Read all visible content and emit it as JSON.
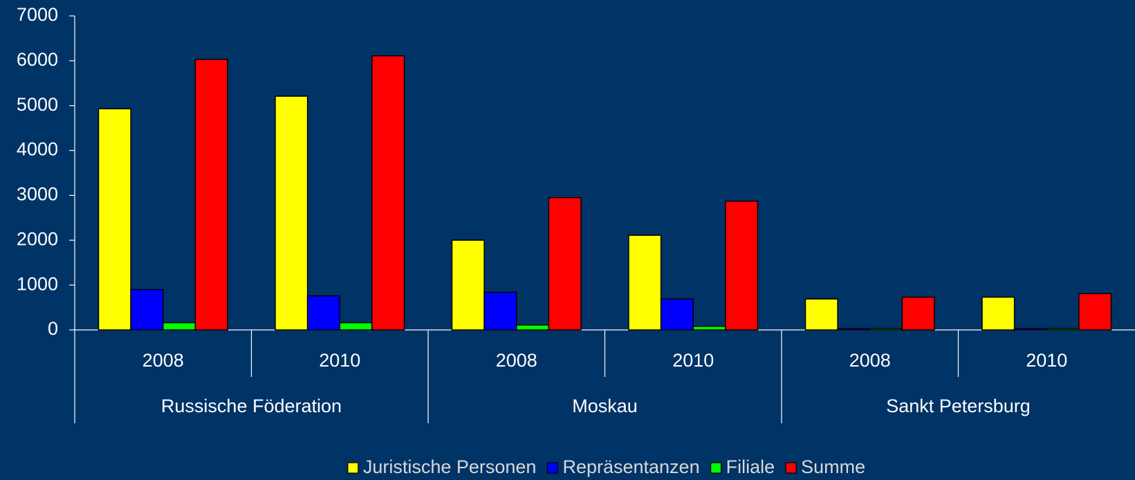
{
  "chart_data": {
    "type": "bar",
    "categories": [
      "2008",
      "2010",
      "2008",
      "2010",
      "2008",
      "2010"
    ],
    "groups": [
      "Russische Föderation",
      "Moskau",
      "Sankt Petersburg"
    ],
    "series": [
      {
        "name": "Juristische Personen",
        "color": "#ffff00",
        "values": [
          4930,
          5210,
          2000,
          2110,
          690,
          730
        ]
      },
      {
        "name": "Repräsentanzen",
        "color": "#0000ff",
        "values": [
          900,
          760,
          840,
          690,
          30,
          30
        ]
      },
      {
        "name": "Filiale",
        "color": "#00ff00",
        "values": [
          160,
          160,
          110,
          80,
          30,
          30
        ]
      },
      {
        "name": "Summe",
        "color": "#ff0000",
        "values": [
          6030,
          6110,
          2950,
          2870,
          730,
          810
        ]
      }
    ],
    "ylim": [
      0,
      7000
    ],
    "yticks": [
      0,
      1000,
      2000,
      3000,
      4000,
      5000,
      6000,
      7000
    ],
    "grid": false,
    "legend": "bottom"
  }
}
